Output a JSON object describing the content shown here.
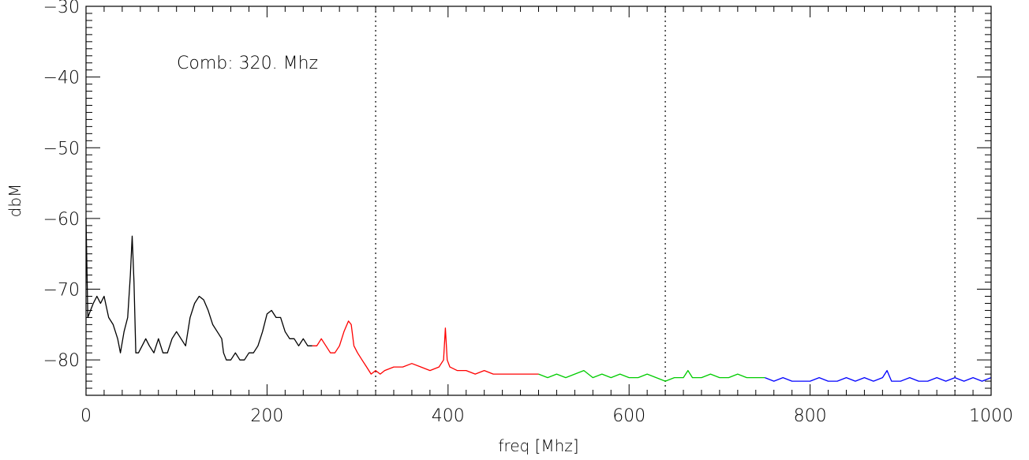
{
  "chart_data": {
    "type": "line",
    "xlabel": "freq [Mhz]",
    "ylabel": "dbM",
    "xlim": [
      0,
      1000
    ],
    "ylim": [
      -85,
      -30
    ],
    "x_ticks": [
      0,
      200,
      400,
      600,
      800,
      1000
    ],
    "y_ticks": [
      -80,
      -70,
      -60,
      -50,
      -40,
      -30
    ],
    "annotation": "Comb: 320.  Mhz",
    "comb_lines_x": [
      320,
      640,
      960
    ],
    "grid": false,
    "legend": "none",
    "series": [
      {
        "color": "#000000",
        "x": [
          0,
          2,
          5,
          8,
          12,
          16,
          20,
          25,
          30,
          35,
          38,
          42,
          46,
          49,
          51,
          53,
          55,
          58,
          62,
          66,
          70,
          75,
          80,
          85,
          90,
          95,
          100,
          105,
          110,
          115,
          120,
          125,
          130,
          135,
          140,
          145,
          150,
          152,
          155,
          160,
          165,
          170,
          175,
          180,
          185,
          190,
          195,
          200,
          205,
          210,
          215,
          220,
          225,
          230,
          235,
          240,
          245,
          250
        ],
        "y": [
          -60,
          -74,
          -73,
          -72,
          -71,
          -72,
          -71,
          -74,
          -75,
          -77,
          -79,
          -76,
          -74,
          -68,
          -62.5,
          -69,
          -79,
          -79,
          -78,
          -77,
          -78,
          -79,
          -77,
          -79,
          -79,
          -77,
          -76,
          -77,
          -78,
          -74,
          -72,
          -71,
          -71.5,
          -73,
          -75,
          -76,
          -77,
          -79,
          -80,
          -80,
          -79,
          -80,
          -80,
          -79,
          -79,
          -78,
          -76,
          -73.5,
          -73,
          -74,
          -74,
          -76,
          -77,
          -77,
          -78,
          -77,
          -78,
          -78
        ]
      },
      {
        "color": "#ff0000",
        "x": [
          250,
          255,
          260,
          265,
          270,
          275,
          280,
          285,
          290,
          293,
          296,
          300,
          305,
          310,
          315,
          320,
          325,
          330,
          340,
          350,
          360,
          370,
          380,
          390,
          395,
          397,
          399,
          402,
          410,
          420,
          430,
          440,
          450,
          460,
          470,
          480,
          490,
          500
        ],
        "y": [
          -78,
          -78,
          -77,
          -78,
          -79,
          -79,
          -78,
          -76,
          -74.5,
          -75,
          -78,
          -79,
          -80,
          -81,
          -82,
          -81.5,
          -82,
          -81.5,
          -81,
          -81,
          -80.5,
          -81,
          -81.5,
          -81,
          -80,
          -75.5,
          -80,
          -81,
          -81.5,
          -81.5,
          -82,
          -81.5,
          -82,
          -82,
          -82,
          -82,
          -82,
          -82
        ]
      },
      {
        "color": "#00cc00",
        "x": [
          500,
          510,
          520,
          530,
          540,
          550,
          560,
          570,
          580,
          590,
          600,
          610,
          620,
          630,
          640,
          650,
          660,
          665,
          670,
          680,
          690,
          700,
          710,
          720,
          730,
          740,
          750
        ],
        "y": [
          -82,
          -82.5,
          -82,
          -82.5,
          -82,
          -81.5,
          -82.5,
          -82,
          -82.5,
          -82,
          -82.5,
          -82.5,
          -82,
          -82.5,
          -83,
          -82.5,
          -82.5,
          -81.5,
          -82.5,
          -82.5,
          -82,
          -82.5,
          -82.5,
          -82,
          -82.5,
          -82.5,
          -82.5
        ]
      },
      {
        "color": "#0000ff",
        "x": [
          750,
          760,
          770,
          780,
          790,
          800,
          810,
          820,
          830,
          840,
          850,
          860,
          870,
          880,
          885,
          890,
          900,
          910,
          920,
          930,
          940,
          950,
          960,
          970,
          980,
          990,
          1000
        ],
        "y": [
          -82.5,
          -83,
          -82.5,
          -83,
          -83,
          -83,
          -82.5,
          -83,
          -83,
          -82.5,
          -83,
          -82.5,
          -83,
          -82.5,
          -81.5,
          -83,
          -83,
          -82.5,
          -83,
          -83,
          -82.5,
          -83,
          -82.5,
          -83,
          -82.5,
          -83,
          -82.5
        ]
      }
    ]
  }
}
